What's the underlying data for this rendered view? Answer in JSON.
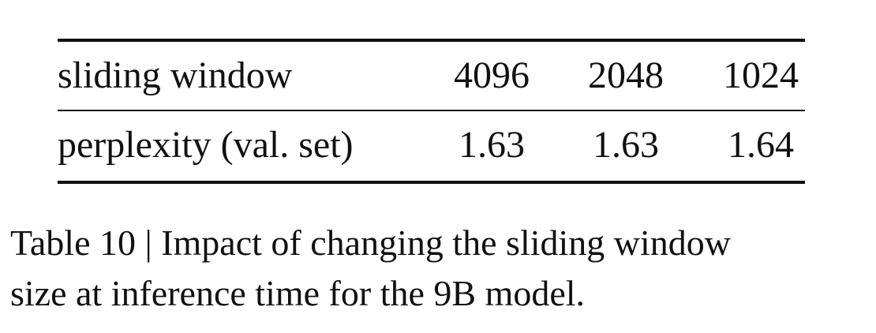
{
  "table": {
    "header": {
      "label": "sliding window",
      "values": [
        "4096",
        "2048",
        "1024"
      ]
    },
    "row": {
      "label": "perplexity (val. set)",
      "values": [
        "1.63",
        "1.63",
        "1.64"
      ]
    }
  },
  "caption": {
    "line1": "Table 10 | Impact of changing the sliding window",
    "line2": "size at inference time for the 9B model."
  }
}
